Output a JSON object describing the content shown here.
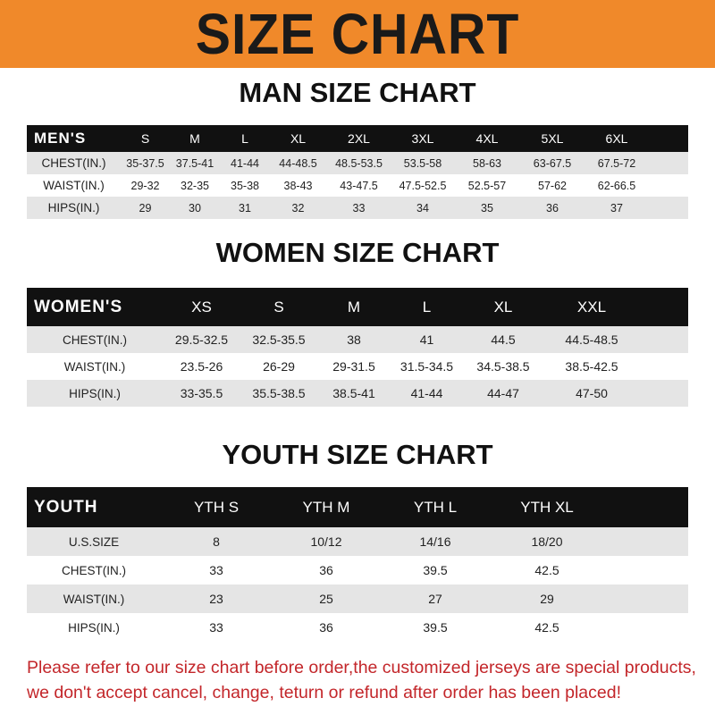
{
  "banner": {
    "title": "SIZE CHART",
    "color": "#f0892a"
  },
  "men": {
    "title": "MAN SIZE CHART",
    "header": [
      "MEN'S",
      "S",
      "M",
      "L",
      "XL",
      "2XL",
      "3XL",
      "4XL",
      "5XL",
      "6XL"
    ],
    "rows": [
      [
        "CHEST(IN.)",
        "35-37.5",
        "37.5-41",
        "41-44",
        "44-48.5",
        "48.5-53.5",
        "53.5-58",
        "58-63",
        "63-67.5",
        "67.5-72"
      ],
      [
        "WAIST(IN.)",
        "29-32",
        "32-35",
        "35-38",
        "38-43",
        "43-47.5",
        "47.5-52.5",
        "52.5-57",
        "57-62",
        "62-66.5"
      ],
      [
        "HIPS(IN.)",
        "29",
        "30",
        "31",
        "32",
        "33",
        "34",
        "35",
        "36",
        "37"
      ]
    ]
  },
  "women": {
    "title": "WOMEN SIZE CHART",
    "header": [
      "WOMEN'S",
      "XS",
      "S",
      "M",
      "L",
      "XL",
      "XXL"
    ],
    "rows": [
      [
        "CHEST(IN.)",
        "29.5-32.5",
        "32.5-35.5",
        "38",
        "41",
        "44.5",
        "44.5-48.5"
      ],
      [
        "WAIST(IN.)",
        "23.5-26",
        "26-29",
        "29-31.5",
        "31.5-34.5",
        "34.5-38.5",
        "38.5-42.5"
      ],
      [
        "HIPS(IN.)",
        "33-35.5",
        "35.5-38.5",
        "38.5-41",
        "41-44",
        "44-47",
        "47-50"
      ]
    ]
  },
  "youth": {
    "title": "YOUTH SIZE CHART",
    "header": [
      "YOUTH",
      "YTH S",
      "YTH M",
      "YTH L",
      "YTH XL"
    ],
    "rows": [
      [
        "U.S.SIZE",
        "8",
        "10/12",
        "14/16",
        "18/20"
      ],
      [
        "CHEST(IN.)",
        "33",
        "36",
        "39.5",
        "42.5"
      ],
      [
        "WAIST(IN.)",
        "23",
        "25",
        "27",
        "29"
      ],
      [
        "HIPS(IN.)",
        "33",
        "36",
        "39.5",
        "42.5"
      ]
    ]
  },
  "notice": {
    "line1": "Please refer to our size chart before order,the customized jerseys are special products,",
    "line2": "we don't accept cancel, change, teturn or refund after order has been placed!",
    "color": "#c3262a"
  }
}
